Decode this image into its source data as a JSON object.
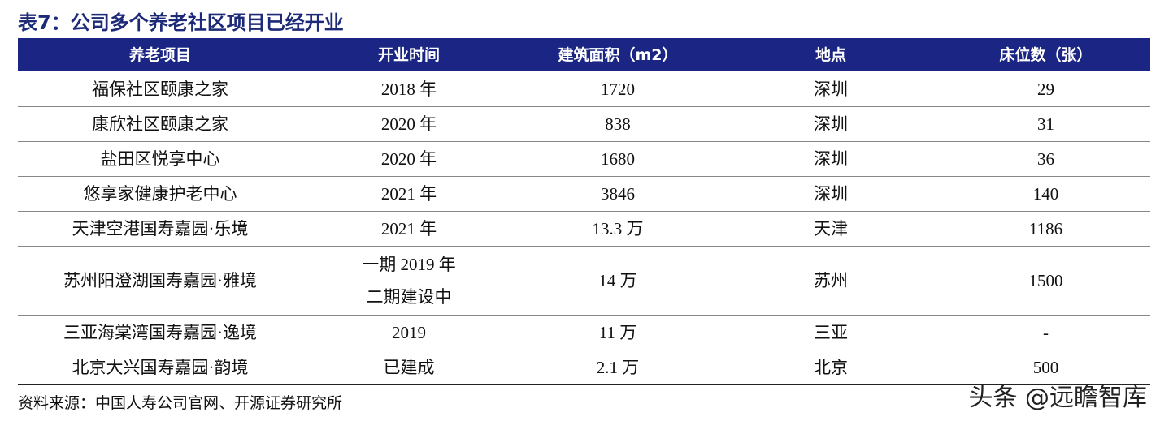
{
  "header": {
    "title": "表7：公司多个养老社区项目已经开业"
  },
  "table": {
    "columns": [
      "养老项目",
      "开业时间",
      "建筑面积（m2）",
      "地点",
      "床位数（张）"
    ],
    "rows": [
      [
        "福保社区颐康之家",
        "2018 年",
        "1720",
        "深圳",
        "29"
      ],
      [
        "康欣社区颐康之家",
        "2020 年",
        "838",
        "深圳",
        "31"
      ],
      [
        "盐田区悦享中心",
        "2020 年",
        "1680",
        "深圳",
        "36"
      ],
      [
        "悠享家健康护老中心",
        "2021 年",
        "3846",
        "深圳",
        "140"
      ],
      [
        "天津空港国寿嘉园·乐境",
        "2021 年",
        "13.3 万",
        "天津",
        "1186"
      ],
      [
        "苏州阳澄湖国寿嘉园·雅境",
        [
          "一期 2019 年",
          "二期建设中"
        ],
        "14 万",
        "苏州",
        "1500"
      ],
      [
        "三亚海棠湾国寿嘉园·逸境",
        "2019",
        "11 万",
        "三亚",
        "-"
      ],
      [
        "北京大兴国寿嘉园·韵境",
        "已建成",
        "2.1 万",
        "北京",
        "500"
      ]
    ]
  },
  "footer": {
    "source": "资料来源：中国人寿公司官网、开源证券研究所",
    "watermark": "头条 @远瞻智库"
  }
}
